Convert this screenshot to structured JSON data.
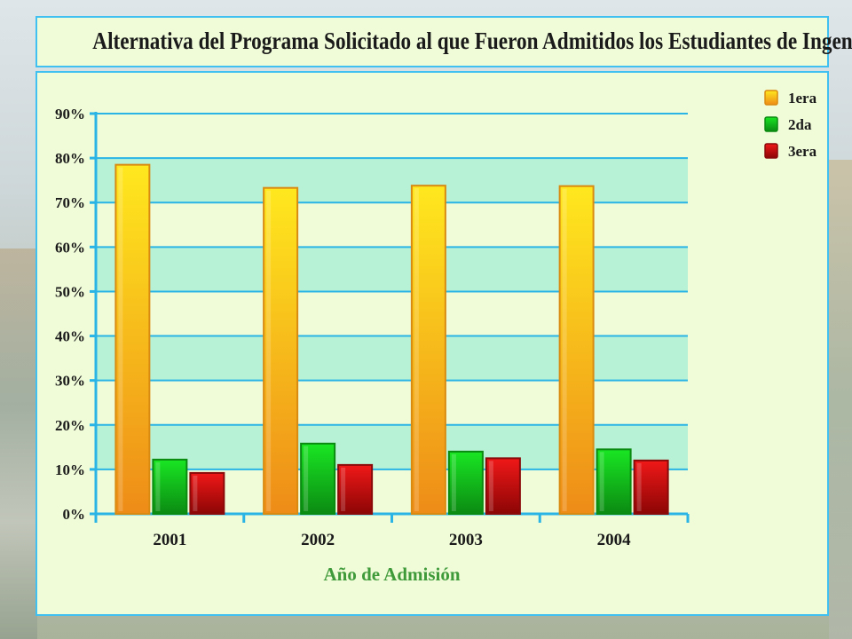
{
  "chart_data": {
    "type": "bar",
    "title": "Alternativa del Programa Solicitado al que Fueron Admitidos los Estudiantes de Ingeniería",
    "xlabel": "Año de Admisión",
    "ylabel": "",
    "categories": [
      "2001",
      "2002",
      "2003",
      "2004"
    ],
    "series": [
      {
        "name": "1era",
        "values": [
          78.5,
          73.3,
          73.8,
          73.7
        ]
      },
      {
        "name": "2da",
        "values": [
          12.2,
          15.8,
          14.0,
          14.5
        ]
      },
      {
        "name": "3era",
        "values": [
          9.2,
          11.0,
          12.5,
          12.0
        ]
      }
    ],
    "ylim": [
      0,
      90
    ],
    "yticks": [
      "0%",
      "10%",
      "20%",
      "30%",
      "40%",
      "50%",
      "60%",
      "70%",
      "80%",
      "90%"
    ],
    "grid": true,
    "legend_position": "top-right",
    "colors": {
      "1era": {
        "top": "#ffe81e",
        "bottom": "#ee8c18",
        "edge": "#d98a10"
      },
      "2da": {
        "top": "#19e623",
        "bottom": "#0b8a12",
        "edge": "#0a8a10"
      },
      "3era": {
        "top": "#f01818",
        "bottom": "#8c0505",
        "edge": "#8a0a0a"
      },
      "axis": "#2ab4e6",
      "grid_band": "#b8f2d6",
      "xlabel": "#3f9a3a"
    }
  }
}
